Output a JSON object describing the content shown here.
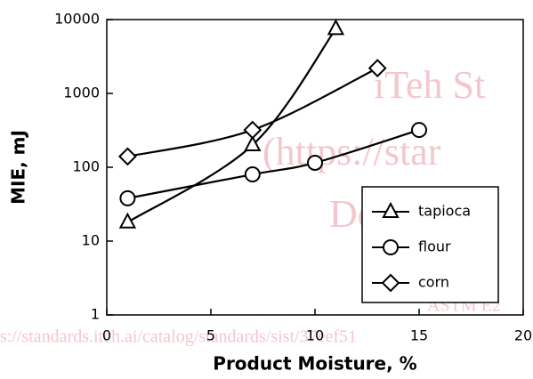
{
  "chart_data": {
    "type": "line",
    "x_label": "Product Moisture, %",
    "y_label": "MIE, mJ",
    "xlim": [
      0,
      20
    ],
    "xticks": [
      0,
      5,
      10,
      15,
      20
    ],
    "ylim": [
      1,
      10000
    ],
    "yticks": [
      1,
      10,
      100,
      1000,
      10000
    ],
    "log_y": true,
    "grid": false,
    "legend_position": "lower right",
    "watermark": [
      "iTeh St",
      "(https://star",
      "Docume",
      "ASTM E2",
      "s://standards.iteh.ai/catalog/standards/sist/37eef51"
    ],
    "series": [
      {
        "name": "tapioca",
        "marker": "triangle",
        "color": "#000000",
        "x": [
          1,
          7,
          11
        ],
        "values": [
          18,
          200,
          7500
        ]
      },
      {
        "name": "flour",
        "marker": "circle",
        "color": "#000000",
        "x": [
          1,
          7,
          10,
          15
        ],
        "values": [
          38,
          80,
          115,
          320
        ]
      },
      {
        "name": "corn",
        "marker": "diamond",
        "color": "#000000",
        "x": [
          1,
          7,
          13
        ],
        "values": [
          140,
          320,
          2200
        ]
      }
    ]
  }
}
